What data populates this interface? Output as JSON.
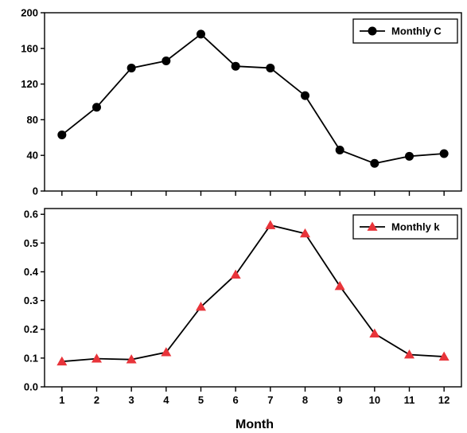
{
  "chart_data": [
    {
      "type": "line",
      "x": [
        1,
        2,
        3,
        4,
        5,
        6,
        7,
        8,
        9,
        10,
        11,
        12
      ],
      "series": [
        {
          "name": "Monthly C",
          "values": [
            63,
            94,
            138,
            146,
            176,
            140,
            138,
            107,
            46,
            31,
            39,
            42
          ],
          "color": "#000000",
          "marker": "circle"
        }
      ],
      "ylim": [
        0,
        200
      ],
      "yticks": [
        0,
        40,
        80,
        120,
        160,
        200
      ],
      "xlim": [
        0.5,
        12.5
      ],
      "xticks": [
        1,
        2,
        3,
        4,
        5,
        6,
        7,
        8,
        9,
        10,
        11,
        12
      ],
      "show_xtick_labels": false,
      "xlabel": "",
      "ylabel": "",
      "grid": false,
      "legend_position": "top-right"
    },
    {
      "type": "line",
      "x": [
        1,
        2,
        3,
        4,
        5,
        6,
        7,
        8,
        9,
        10,
        11,
        12
      ],
      "series": [
        {
          "name": "Monthly k",
          "values": [
            0.088,
            0.098,
            0.095,
            0.12,
            0.278,
            0.39,
            0.562,
            0.533,
            0.35,
            0.185,
            0.112,
            0.105
          ],
          "color": "#e8343a",
          "marker": "triangle"
        }
      ],
      "ylim": [
        0,
        0.62
      ],
      "yticks": [
        "0.0",
        "0.1",
        "0.2",
        "0.3",
        "0.4",
        "0.5",
        "0.6"
      ],
      "xlim": [
        0.5,
        12.5
      ],
      "xticks": [
        1,
        2,
        3,
        4,
        5,
        6,
        7,
        8,
        9,
        10,
        11,
        12
      ],
      "show_xtick_labels": true,
      "xlabel": "Month",
      "ylabel": "",
      "grid": false,
      "legend_position": "top-right"
    }
  ]
}
